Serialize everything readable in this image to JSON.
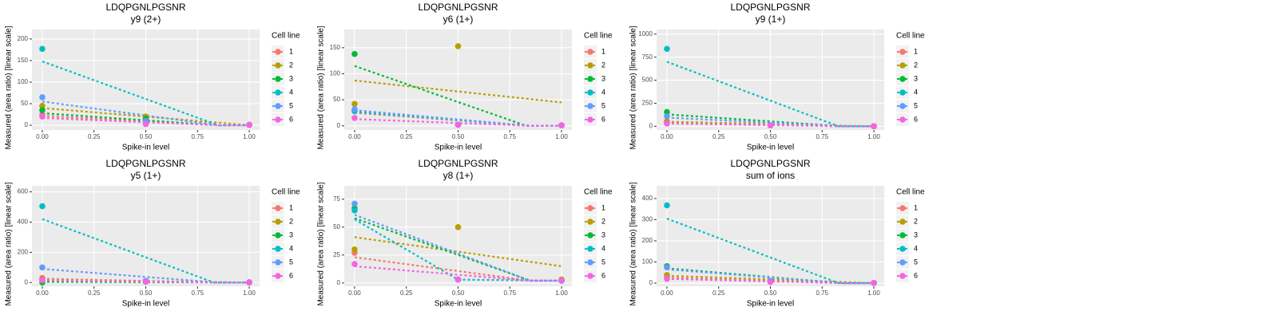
{
  "chart_data": [
    {
      "type": "scatter",
      "title": "LDQPGNLPGSNR",
      "subtitle": "y9 (2+)",
      "x_label": "Spike-in level",
      "y_label": "Measured (area ratio) [linear scale]",
      "legend_title": "Cell line",
      "grid": true,
      "x": [
        0,
        0.5,
        1
      ],
      "xlim": [
        -0.05,
        1.05
      ],
      "xticks": [
        {
          "value": 0,
          "label": "0.00"
        },
        {
          "value": 0.25,
          "label": "0.25"
        },
        {
          "value": 0.5,
          "label": "0.50"
        },
        {
          "value": 0.75,
          "label": "0.75"
        },
        {
          "value": 1,
          "label": "1.00"
        }
      ],
      "ylim": [
        -11,
        222
      ],
      "yticks": [
        0,
        50,
        100,
        150,
        200
      ],
      "series": [
        {
          "name": "1",
          "color": "#F8766D",
          "values": [
            25,
            8,
            1
          ],
          "fit_x": [
            0,
            0.85,
            1
          ],
          "fit_values": [
            22,
            0,
            0
          ]
        },
        {
          "name": "2",
          "color": "#B79F00",
          "values": [
            45,
            20,
            1
          ],
          "fit_x": [
            0,
            1
          ],
          "fit_values": [
            40,
            0
          ]
        },
        {
          "name": "3",
          "color": "#00BA38",
          "values": [
            35,
            15,
            1
          ],
          "fit_x": [
            0,
            0.85,
            1
          ],
          "fit_values": [
            28,
            0,
            0
          ]
        },
        {
          "name": "4",
          "color": "#00BFC4",
          "values": [
            177,
            3,
            1
          ],
          "fit_x": [
            0,
            0.85,
            1
          ],
          "fit_values": [
            148,
            0,
            0
          ]
        },
        {
          "name": "5",
          "color": "#619CFF",
          "values": [
            65,
            10,
            1
          ],
          "fit_x": [
            0,
            0.85,
            1
          ],
          "fit_values": [
            55,
            0,
            0
          ]
        },
        {
          "name": "6",
          "color": "#F564E3",
          "values": [
            20,
            3,
            1
          ],
          "fit_x": [
            0,
            0.85,
            1
          ],
          "fit_values": [
            17,
            0,
            0
          ]
        }
      ]
    },
    {
      "type": "scatter",
      "title": "LDQPGNLPGSNR",
      "subtitle": "y6 (1+)",
      "x_label": "Spike-in level",
      "y_label": "Measured (area ratio) [linear scale]",
      "legend_title": "Cell line",
      "grid": true,
      "x": [
        0,
        0.5,
        1
      ],
      "xlim": [
        -0.05,
        1.05
      ],
      "xticks": [
        {
          "value": 0,
          "label": "0.00"
        },
        {
          "value": 0.25,
          "label": "0.25"
        },
        {
          "value": 0.5,
          "label": "0.50"
        },
        {
          "value": 0.75,
          "label": "0.75"
        },
        {
          "value": 1,
          "label": "1.00"
        }
      ],
      "ylim": [
        -8,
        185
      ],
      "yticks": [
        0,
        50,
        100,
        150
      ],
      "series": [
        {
          "name": "1",
          "color": "#F8766D",
          "values": [
            30,
            2,
            1
          ],
          "fit_x": [
            0,
            0.85,
            1
          ],
          "fit_values": [
            25,
            0,
            0
          ]
        },
        {
          "name": "2",
          "color": "#B79F00",
          "values": [
            42,
            153,
            1
          ],
          "fit_x": [
            0,
            1
          ],
          "fit_values": [
            87,
            45
          ]
        },
        {
          "name": "3",
          "color": "#00BA38",
          "values": [
            138,
            2,
            1
          ],
          "fit_x": [
            0,
            0.83,
            1
          ],
          "fit_values": [
            115,
            0,
            0
          ]
        },
        {
          "name": "4",
          "color": "#00BFC4",
          "values": [
            28,
            2,
            1
          ],
          "fit_x": [
            0,
            0.85,
            1
          ],
          "fit_values": [
            27,
            0,
            0
          ]
        },
        {
          "name": "5",
          "color": "#619CFF",
          "values": [
            32,
            2,
            1
          ],
          "fit_x": [
            0,
            0.85,
            1
          ],
          "fit_values": [
            30,
            0,
            0
          ]
        },
        {
          "name": "6",
          "color": "#F564E3",
          "values": [
            15,
            2,
            1
          ],
          "fit_x": [
            0,
            0.85,
            1
          ],
          "fit_values": [
            13,
            0,
            0
          ]
        }
      ]
    },
    {
      "type": "scatter",
      "title": "LDQPGNLPGSNR",
      "subtitle": "y9 (1+)",
      "x_label": "Spike-in level",
      "y_label": "Measured (area ratio) [linear scale]",
      "legend_title": "Cell line",
      "grid": true,
      "x": [
        0,
        0.5,
        1
      ],
      "xlim": [
        -0.05,
        1.05
      ],
      "xticks": [
        {
          "value": 0,
          "label": "0.00"
        },
        {
          "value": 0.25,
          "label": "0.25"
        },
        {
          "value": 0.5,
          "label": "0.50"
        },
        {
          "value": 0.75,
          "label": "0.75"
        },
        {
          "value": 1,
          "label": "1.00"
        }
      ],
      "ylim": [
        -40,
        1050
      ],
      "yticks": [
        0,
        250,
        500,
        750,
        1000
      ],
      "series": [
        {
          "name": "1",
          "color": "#F8766D",
          "values": [
            40,
            10,
            1
          ],
          "fit_x": [
            0,
            0.85,
            1
          ],
          "fit_values": [
            40,
            0,
            0
          ]
        },
        {
          "name": "2",
          "color": "#B79F00",
          "values": [
            55,
            10,
            1
          ],
          "fit_x": [
            0,
            1
          ],
          "fit_values": [
            50,
            0
          ]
        },
        {
          "name": "3",
          "color": "#00BA38",
          "values": [
            155,
            10,
            1
          ],
          "fit_x": [
            0,
            0.85,
            1
          ],
          "fit_values": [
            130,
            0,
            0
          ]
        },
        {
          "name": "4",
          "color": "#00BFC4",
          "values": [
            840,
            10,
            1
          ],
          "fit_x": [
            0,
            0.83,
            1
          ],
          "fit_values": [
            700,
            0,
            0
          ]
        },
        {
          "name": "5",
          "color": "#619CFF",
          "values": [
            110,
            10,
            1
          ],
          "fit_x": [
            0,
            0.85,
            1
          ],
          "fit_values": [
            95,
            0,
            0
          ]
        },
        {
          "name": "6",
          "color": "#F564E3",
          "values": [
            30,
            10,
            1
          ],
          "fit_x": [
            0,
            0.85,
            1
          ],
          "fit_values": [
            30,
            0,
            0
          ]
        }
      ]
    },
    {
      "type": "scatter",
      "title": "LDQPGNLPGSNR",
      "subtitle": "y5 (1+)",
      "x_label": "Spike-in level",
      "y_label": "Measured (area ratio) [linear scale]",
      "legend_title": "Cell line",
      "grid": true,
      "x": [
        0,
        0.5,
        1
      ],
      "xlim": [
        -0.05,
        1.05
      ],
      "xticks": [
        {
          "value": 0,
          "label": "0.00"
        },
        {
          "value": 0.25,
          "label": "0.25"
        },
        {
          "value": 0.5,
          "label": "0.50"
        },
        {
          "value": 0.75,
          "label": "0.75"
        },
        {
          "value": 1,
          "label": "1.00"
        }
      ],
      "ylim": [
        -25,
        640
      ],
      "yticks": [
        0,
        200,
        400,
        600
      ],
      "series": [
        {
          "name": "1",
          "color": "#F8766D",
          "values": [
            30,
            10,
            1
          ],
          "fit_x": [
            0,
            0.85,
            1
          ],
          "fit_values": [
            25,
            0,
            0
          ]
        },
        {
          "name": "2",
          "color": "#B79F00",
          "values": [
            20,
            10,
            1
          ],
          "fit_x": [
            0,
            1
          ],
          "fit_values": [
            18,
            0
          ]
        },
        {
          "name": "3",
          "color": "#00BA38",
          "values": [
            0,
            5,
            1
          ],
          "fit_x": [
            0,
            1
          ],
          "fit_values": [
            5,
            0
          ]
        },
        {
          "name": "4",
          "color": "#00BFC4",
          "values": [
            505,
            10,
            1
          ],
          "fit_x": [
            0,
            0.83,
            1
          ],
          "fit_values": [
            420,
            0,
            0
          ]
        },
        {
          "name": "5",
          "color": "#619CFF",
          "values": [
            100,
            10,
            1
          ],
          "fit_x": [
            0,
            0.85,
            1
          ],
          "fit_values": [
            90,
            0,
            0
          ]
        },
        {
          "name": "6",
          "color": "#F564E3",
          "values": [
            15,
            5,
            1
          ],
          "fit_x": [
            0,
            0.85,
            1
          ],
          "fit_values": [
            15,
            0,
            0
          ]
        }
      ]
    },
    {
      "type": "scatter",
      "title": "LDQPGNLPGSNR",
      "subtitle": "y8 (1+)",
      "x_label": "Spike-in level",
      "y_label": "Measured (area ratio) [linear scale]",
      "legend_title": "Cell line",
      "grid": true,
      "x": [
        0,
        0.5,
        1
      ],
      "xlim": [
        -0.05,
        1.05
      ],
      "xticks": [
        {
          "value": 0,
          "label": "0.00"
        },
        {
          "value": 0.25,
          "label": "0.25"
        },
        {
          "value": 0.5,
          "label": "0.50"
        },
        {
          "value": 0.75,
          "label": "0.75"
        },
        {
          "value": 1,
          "label": "1.00"
        }
      ],
      "ylim": [
        -3,
        87
      ],
      "yticks": [
        0,
        25,
        50,
        75
      ],
      "series": [
        {
          "name": "1",
          "color": "#F8766D",
          "values": [
            27,
            3,
            2
          ],
          "fit_x": [
            0,
            0.85,
            1
          ],
          "fit_values": [
            23,
            2,
            2
          ]
        },
        {
          "name": "2",
          "color": "#B79F00",
          "values": [
            30,
            50,
            3
          ],
          "fit_x": [
            0,
            1
          ],
          "fit_values": [
            41,
            15
          ]
        },
        {
          "name": "3",
          "color": "#00BA38",
          "values": [
            67,
            3,
            2
          ],
          "fit_x": [
            0,
            0.85,
            1
          ],
          "fit_values": [
            58,
            2,
            2
          ]
        },
        {
          "name": "4",
          "color": "#00BFC4",
          "values": [
            65,
            3,
            2
          ],
          "fit_x": [
            0,
            0.5,
            1
          ],
          "fit_values": [
            57,
            3,
            2
          ]
        },
        {
          "name": "5",
          "color": "#619CFF",
          "values": [
            71,
            3,
            2
          ],
          "fit_x": [
            0,
            0.85,
            1
          ],
          "fit_values": [
            61,
            2,
            2
          ]
        },
        {
          "name": "6",
          "color": "#F564E3",
          "values": [
            17,
            3,
            2
          ],
          "fit_x": [
            0,
            0.85,
            1
          ],
          "fit_values": [
            15,
            2,
            2
          ]
        }
      ]
    },
    {
      "type": "scatter",
      "title": "LDQPGNLPGSNR",
      "subtitle": "sum of ions",
      "x_label": "Spike-in level",
      "y_label": "Measured (area ratio) [linear scale]",
      "legend_title": "Cell line",
      "grid": true,
      "x": [
        0,
        0.5,
        1
      ],
      "xlim": [
        -0.05,
        1.05
      ],
      "xticks": [
        {
          "value": 0,
          "label": "0.00"
        },
        {
          "value": 0.25,
          "label": "0.25"
        },
        {
          "value": 0.5,
          "label": "0.50"
        },
        {
          "value": 0.75,
          "label": "0.75"
        },
        {
          "value": 1,
          "label": "1.00"
        }
      ],
      "ylim": [
        -15,
        460
      ],
      "yticks": [
        0,
        100,
        200,
        300,
        400
      ],
      "series": [
        {
          "name": "1",
          "color": "#F8766D",
          "values": [
            30,
            8,
            1
          ],
          "fit_x": [
            0,
            0.85,
            1
          ],
          "fit_values": [
            25,
            0,
            0
          ]
        },
        {
          "name": "2",
          "color": "#B79F00",
          "values": [
            38,
            10,
            1
          ],
          "fit_x": [
            0,
            1
          ],
          "fit_values": [
            35,
            0
          ]
        },
        {
          "name": "3",
          "color": "#00BA38",
          "values": [
            80,
            10,
            1
          ],
          "fit_x": [
            0,
            0.85,
            1
          ],
          "fit_values": [
            70,
            0,
            0
          ]
        },
        {
          "name": "4",
          "color": "#00BFC4",
          "values": [
            368,
            10,
            1
          ],
          "fit_x": [
            0,
            0.83,
            1
          ],
          "fit_values": [
            305,
            0,
            0
          ]
        },
        {
          "name": "5",
          "color": "#619CFF",
          "values": [
            75,
            10,
            1
          ],
          "fit_x": [
            0,
            0.85,
            1
          ],
          "fit_values": [
            65,
            0,
            0
          ]
        },
        {
          "name": "6",
          "color": "#F564E3",
          "values": [
            20,
            5,
            1
          ],
          "fit_x": [
            0,
            0.85,
            1
          ],
          "fit_values": [
            20,
            0,
            0
          ]
        }
      ]
    }
  ]
}
